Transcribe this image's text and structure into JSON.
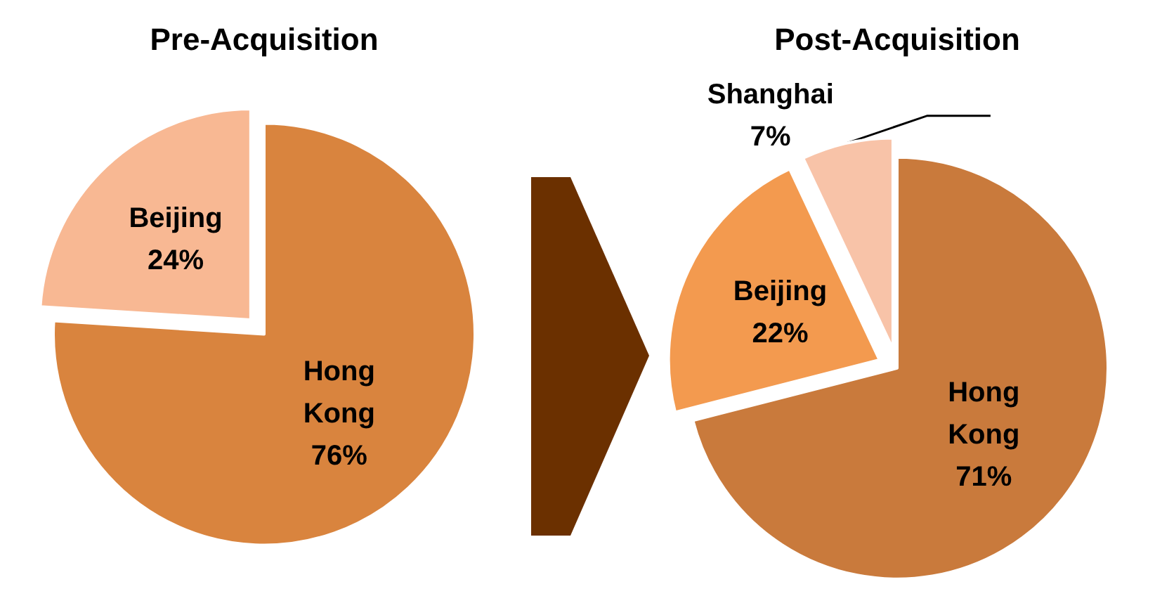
{
  "chart_data": [
    {
      "type": "pie",
      "title": "Pre-Acquisition",
      "categories": [
        "Hong Kong",
        "Beijing"
      ],
      "values": [
        76,
        24
      ],
      "colors": [
        "#d9843e",
        "#f8b893"
      ],
      "value_labels": [
        "76%",
        "24%"
      ]
    },
    {
      "type": "pie",
      "title": "Post-Acquisition",
      "categories": [
        "Hong Kong",
        "Beijing",
        "Shanghai"
      ],
      "values": [
        71,
        22,
        7
      ],
      "colors": [
        "#c97a3c",
        "#f39a4f",
        "#f8c3a8"
      ],
      "value_labels": [
        "71%",
        "22%",
        "7%"
      ]
    }
  ]
}
